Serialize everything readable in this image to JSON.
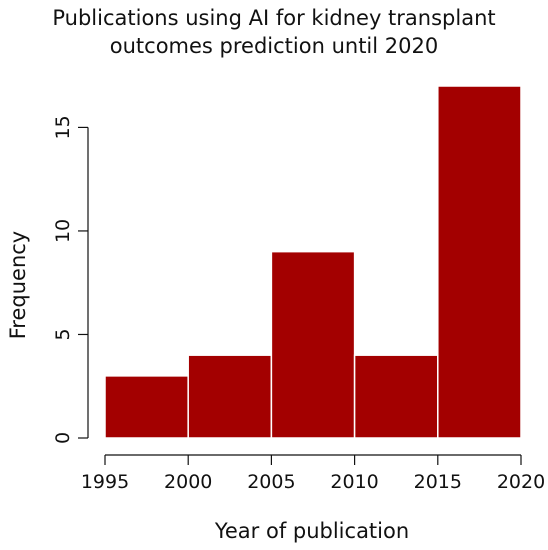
{
  "chart_data": {
    "type": "bar",
    "title_lines": [
      "Publications using AI for kidney transplant",
      "outcomes prediction until 2020"
    ],
    "xlabel": "Year of publication",
    "ylabel": "Frequency",
    "bins": [
      {
        "from": 1995,
        "to": 2000,
        "value": 3
      },
      {
        "from": 2000,
        "to": 2005,
        "value": 4
      },
      {
        "from": 2005,
        "to": 2010,
        "value": 9
      },
      {
        "from": 2010,
        "to": 2015,
        "value": 4
      },
      {
        "from": 2015,
        "to": 2020,
        "value": 17
      }
    ],
    "xticks": [
      1995,
      2000,
      2005,
      2010,
      2015,
      2020
    ],
    "yticks": [
      0,
      5,
      10,
      15
    ],
    "xlim": [
      1995,
      2020
    ],
    "ylim": [
      0,
      17
    ],
    "bar_color": "#a30000",
    "grid": false
  }
}
